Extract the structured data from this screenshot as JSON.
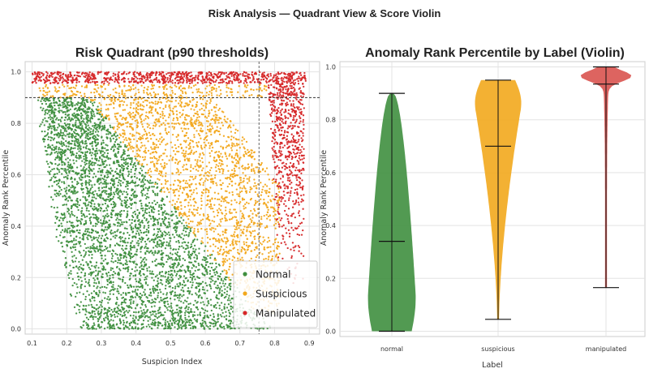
{
  "figure": {
    "suptitle": "Risk Analysis — Quadrant View & Score Violin"
  },
  "chart_data": [
    {
      "type": "scatter",
      "title": "Risk Quadrant (p90 thresholds)",
      "xlabel": "Suspicion Index",
      "ylabel": "Anomaly Rank Percentile",
      "xlim": [
        0.08,
        0.93
      ],
      "ylim": [
        -0.02,
        1.04
      ],
      "xticks": [
        0.1,
        0.2,
        0.3,
        0.4,
        0.5,
        0.6,
        0.7,
        0.8,
        0.9
      ],
      "yticks": [
        0.0,
        0.2,
        0.4,
        0.6,
        0.8,
        1.0
      ],
      "grid": true,
      "thresholds": {
        "x": 0.755,
        "y": 0.9
      },
      "legend": {
        "placement": "lower-right",
        "entries": [
          {
            "label": "Normal",
            "color": "#3f8f3f"
          },
          {
            "label": "Suspicious",
            "color": "#f2a81d"
          },
          {
            "label": "Manipulated",
            "color": "#d62728"
          }
        ]
      },
      "series": [
        {
          "name": "Normal",
          "color": "#3f8f3f",
          "x_range": [
            0.11,
            0.8
          ],
          "y_range": [
            0.0,
            0.9
          ],
          "approx_points": 4000
        },
        {
          "name": "Suspicious",
          "color": "#f2a81d",
          "x_range": [
            0.12,
            0.82
          ],
          "y_range": [
            0.04,
            0.95
          ],
          "approx_points": 2200
        },
        {
          "name": "Manipulated",
          "color": "#d62728",
          "x_range": [
            0.1,
            0.89
          ],
          "y_range": [
            0.16,
            1.0
          ],
          "approx_points": 1500
        }
      ]
    },
    {
      "type": "violin",
      "title": "Anomaly Rank Percentile by Label (Violin)",
      "xlabel": "Label",
      "ylabel": "Anomaly Rank Percentile",
      "categories": [
        "normal",
        "suspicious",
        "manipulated"
      ],
      "ylim": [
        -0.02,
        1.02
      ],
      "yticks": [
        0.0,
        0.2,
        0.4,
        0.6,
        0.8,
        1.0
      ],
      "grid": true,
      "violins": [
        {
          "label": "normal",
          "color": "#3f8f3f",
          "min": 0.0,
          "max": 0.9,
          "median": 0.34
        },
        {
          "label": "suspicious",
          "color": "#f2a81d",
          "min": 0.045,
          "max": 0.95,
          "median": 0.7
        },
        {
          "label": "manipulated",
          "color": "#d9534f",
          "min": 0.165,
          "max": 1.0,
          "median": 0.935
        }
      ]
    }
  ]
}
